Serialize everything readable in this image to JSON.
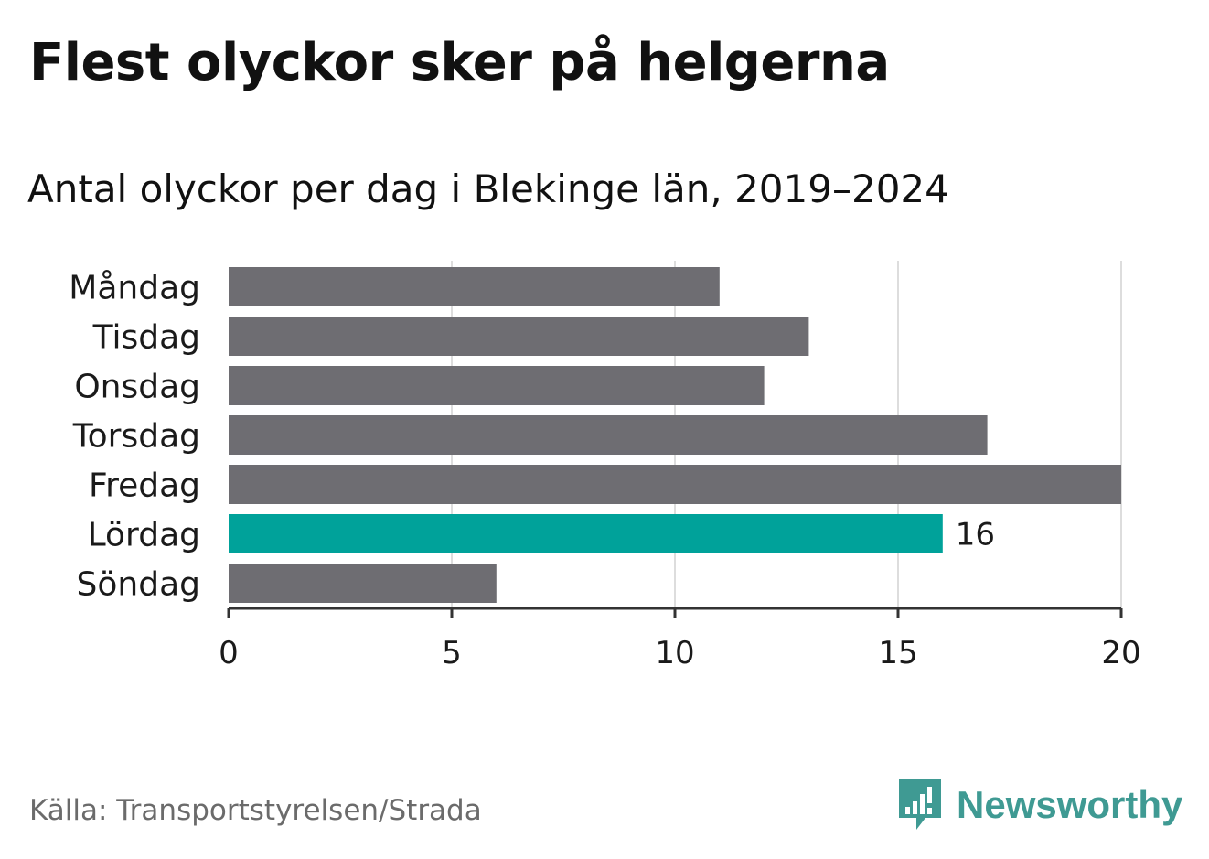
{
  "title": "Flest olyckor sker på helgerna",
  "subtitle": "Antal olyckor per dag i Blekinge län, 2019–2024",
  "source": "Källa: Transportstyrelsen/Strada",
  "brand": "Newsworthy",
  "colors": {
    "bar_default": "#6e6d72",
    "bar_highlight": "#00a29a",
    "brand": "#3f9a93",
    "grid": "#dddddd",
    "axis": "#333333"
  },
  "chart_data": {
    "type": "bar",
    "orientation": "horizontal",
    "categories": [
      "Måndag",
      "Tisdag",
      "Onsdag",
      "Torsdag",
      "Fredag",
      "Lördag",
      "Söndag"
    ],
    "values": [
      11,
      13,
      12,
      17,
      20,
      16,
      6
    ],
    "highlight_index": 5,
    "data_labels": [
      {
        "index": 5,
        "text": "16"
      }
    ],
    "xlim": [
      0,
      20
    ],
    "xticks": [
      0,
      5,
      10,
      15,
      20
    ],
    "grid": true,
    "legend": "none"
  }
}
